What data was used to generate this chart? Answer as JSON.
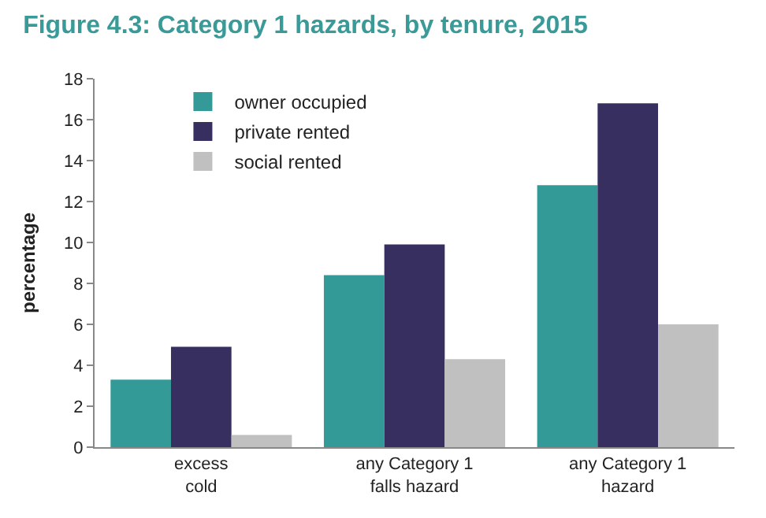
{
  "chart_data": {
    "type": "bar",
    "title": "Figure 4.3: Category 1 hazards, by tenure, 2015",
    "ylabel": "percentage",
    "categories": [
      "excess\ncold",
      "any Category 1\nfalls hazard",
      "any Category 1\nhazard"
    ],
    "series": [
      {
        "name": "owner occupied",
        "color": "#339a97",
        "values": [
          3.3,
          8.4,
          12.8
        ]
      },
      {
        "name": "private rented",
        "color": "#372f60",
        "values": [
          4.9,
          9.9,
          16.8
        ]
      },
      {
        "name": "social rented",
        "color": "#c0c0c0",
        "values": [
          0.6,
          4.3,
          6.0
        ]
      }
    ],
    "ylim": [
      0,
      18
    ],
    "yticks": [
      0,
      2,
      4,
      6,
      8,
      10,
      12,
      14,
      16,
      18
    ],
    "legend": "top left"
  }
}
